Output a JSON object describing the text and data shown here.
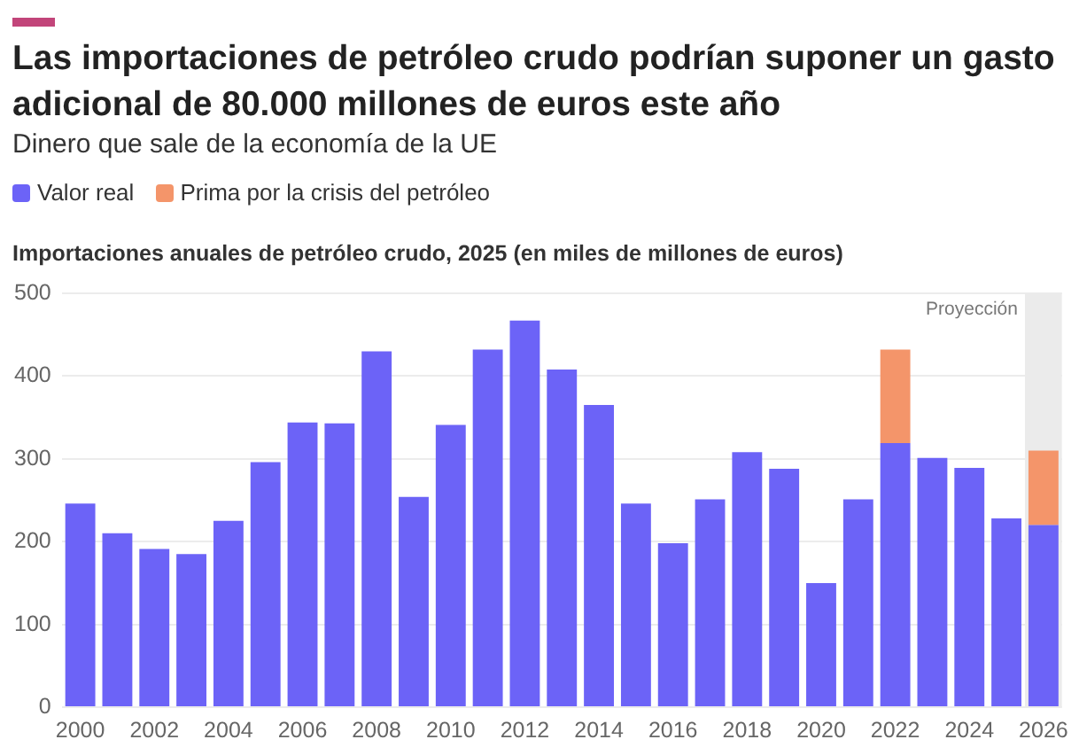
{
  "chart_data": {
    "type": "bar",
    "title": "Las importaciones de petróleo crudo podrían suponer un gasto adicional de 80.000 millones de euros este año",
    "subtitle": "Dinero que sale de la economía de la UE",
    "annotations": [
      "Importaciones anuales de petróleo crudo, 2025 (en miles de millones de euros)"
    ],
    "categories": [
      "2000",
      null,
      "2002",
      null,
      "2004",
      null,
      "2006",
      null,
      "2008",
      null,
      "2010",
      null,
      "2012",
      null,
      "2014",
      null,
      "2016",
      null,
      "2018",
      null,
      "2020",
      null,
      "2022",
      null,
      "2024",
      null,
      "2026"
    ],
    "stacked": true,
    "series": [
      {
        "name": "Valor real",
        "color": "#6c63f7",
        "values": [
          246,
          210,
          191,
          185,
          225,
          296,
          344,
          343,
          430,
          254,
          341,
          432,
          467,
          408,
          365,
          246,
          198,
          251,
          308,
          288,
          150,
          251,
          319,
          301,
          289,
          228,
          220
        ]
      },
      {
        "name": "Prima por la crisis del petróleo",
        "color": "#f4956a",
        "values": [
          null,
          null,
          null,
          null,
          null,
          null,
          null,
          null,
          null,
          null,
          null,
          null,
          null,
          null,
          null,
          null,
          null,
          null,
          null,
          null,
          null,
          null,
          113,
          null,
          null,
          null,
          90
        ]
      }
    ],
    "ylim": [
      0,
      500
    ],
    "yticks": [
      0,
      100,
      200,
      300,
      400,
      500
    ],
    "bands": [
      {
        "axis": "x",
        "from": "2026",
        "to": "2026",
        "label": "Proyección",
        "color": "#ebebeb"
      }
    ],
    "grid": "y",
    "legend": "top left"
  }
}
